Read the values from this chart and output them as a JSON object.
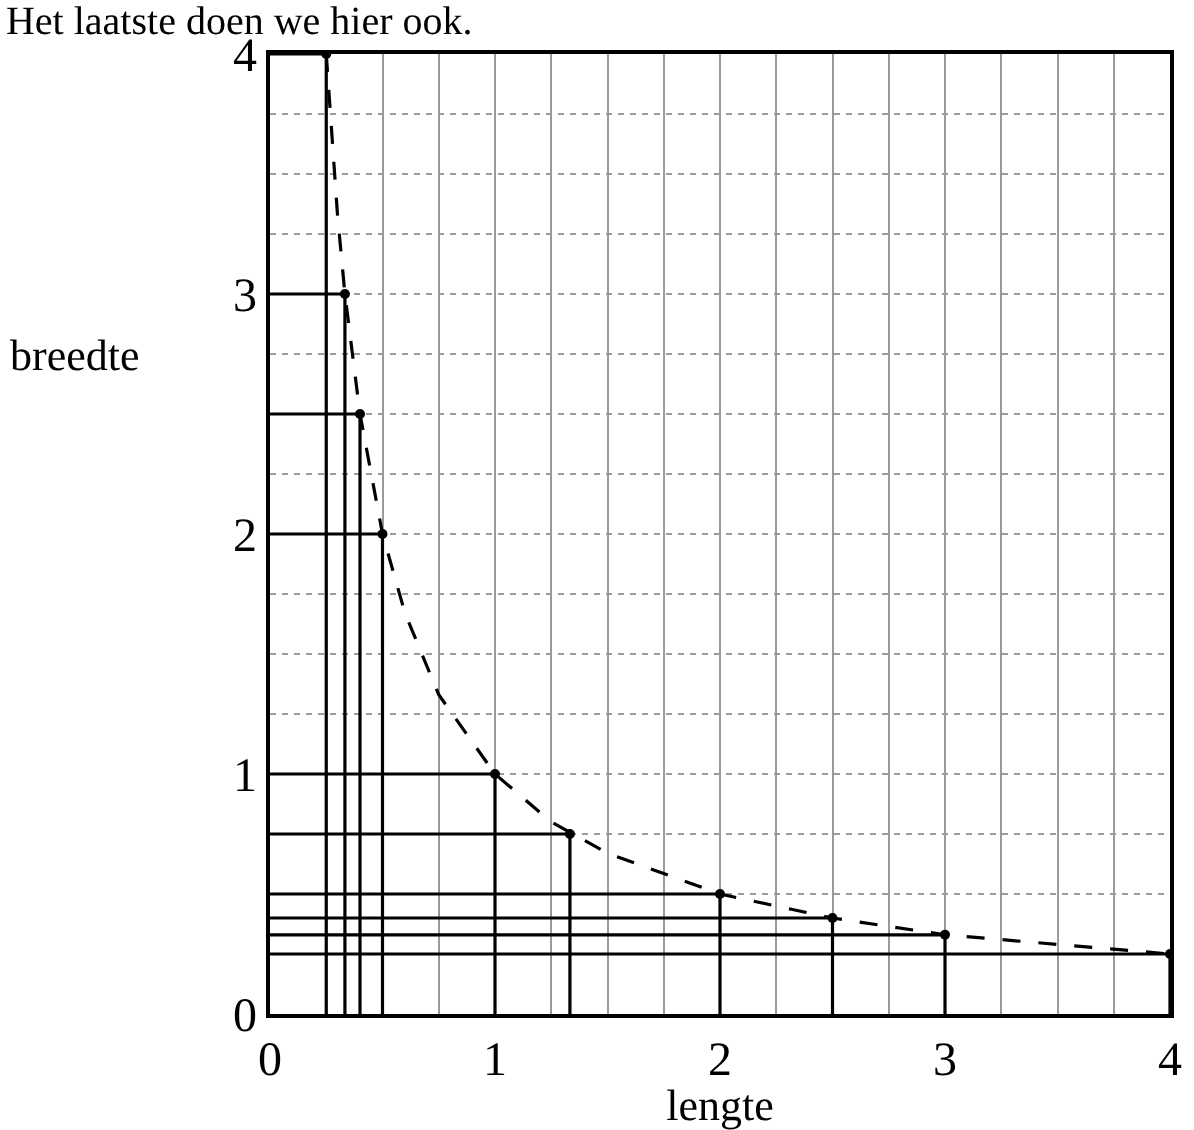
{
  "chart_data": {
    "type": "line",
    "title": "Het laatste doen we hier ook.",
    "xlabel": "lengte",
    "ylabel": "breedte",
    "xlim": [
      0,
      4
    ],
    "ylim": [
      0,
      4
    ],
    "xticks": [
      0,
      {
        "value": 0.25,
        "label": null
      },
      {
        "value": 0.5,
        "label": null
      },
      {
        "value": 0.75,
        "label": null
      },
      1,
      {
        "value": 1.25,
        "label": null
      },
      {
        "value": 1.5,
        "label": null
      },
      {
        "value": 1.75,
        "label": null
      },
      2,
      {
        "value": 2.25,
        "label": null
      },
      {
        "value": 2.5,
        "label": null
      },
      {
        "value": 2.75,
        "label": null
      },
      3,
      {
        "value": 3.25,
        "label": null
      },
      {
        "value": 3.5,
        "label": null
      },
      {
        "value": 3.75,
        "label": null
      },
      4
    ],
    "yticks": [
      0,
      {
        "value": 0.25,
        "label": null
      },
      {
        "value": 0.5,
        "label": null
      },
      {
        "value": 0.75,
        "label": null
      },
      1,
      {
        "value": 1.25,
        "label": null
      },
      {
        "value": 1.5,
        "label": null
      },
      {
        "value": 1.75,
        "label": null
      },
      2,
      {
        "value": 2.25,
        "label": null
      },
      {
        "value": 2.5,
        "label": null
      },
      {
        "value": 2.75,
        "label": null
      },
      3,
      {
        "value": 3.25,
        "label": null
      },
      {
        "value": 3.5,
        "label": null
      },
      {
        "value": 3.75,
        "label": null
      },
      4
    ],
    "grid": true,
    "series": [
      {
        "type": "line",
        "line_style": "dashed",
        "color": "#000000",
        "x": [
          0.25,
          0.3,
          0.333,
          0.4,
          0.5,
          0.6,
          0.75,
          1,
          1.25,
          1.5,
          2,
          2.5,
          3,
          3.5,
          4
        ],
        "values": [
          4,
          3.33,
          3,
          2.5,
          2,
          1.67,
          1.33,
          1,
          0.8,
          0.67,
          0.5,
          0.4,
          0.33,
          0.29,
          0.25
        ]
      },
      {
        "type": "line",
        "line_style": "solid",
        "color": "#000000",
        "x": [
          0,
          0.25,
          0.25
        ],
        "values": [
          4,
          4,
          0
        ]
      },
      {
        "type": "line",
        "line_style": "solid",
        "color": "#000000",
        "x": [
          0,
          0.333,
          0.333
        ],
        "values": [
          3,
          3,
          0
        ]
      },
      {
        "type": "line",
        "line_style": "solid",
        "color": "#000000",
        "x": [
          0,
          0.4,
          0.4
        ],
        "values": [
          2.5,
          2.5,
          0
        ]
      },
      {
        "type": "line",
        "line_style": "solid",
        "color": "#000000",
        "x": [
          0,
          0.5,
          0.5
        ],
        "values": [
          2,
          2,
          0
        ]
      },
      {
        "type": "line",
        "line_style": "solid",
        "color": "#000000",
        "x": [
          0,
          1,
          1
        ],
        "values": [
          1,
          1,
          0
        ]
      },
      {
        "type": "line",
        "line_style": "solid",
        "color": "#000000",
        "x": [
          0,
          1.333,
          1.333
        ],
        "values": [
          0.75,
          0.75,
          0
        ]
      },
      {
        "type": "line",
        "line_style": "solid",
        "color": "#000000",
        "x": [
          0,
          2,
          2
        ],
        "values": [
          0.5,
          0.5,
          0
        ]
      },
      {
        "type": "line",
        "line_style": "solid",
        "color": "#000000",
        "x": [
          0,
          2.5,
          2.5
        ],
        "values": [
          0.4,
          0.4,
          0
        ]
      },
      {
        "type": "line",
        "line_style": "solid",
        "color": "#000000",
        "x": [
          0,
          3,
          3
        ],
        "values": [
          0.33,
          0.33,
          0
        ]
      },
      {
        "type": "line",
        "line_style": "solid",
        "color": "#000000",
        "x": [
          0,
          4,
          4
        ],
        "values": [
          0.25,
          0.25,
          0
        ]
      },
      {
        "type": "scatter",
        "marker": "circle",
        "color": "#000000",
        "x": [
          0.25,
          0.333,
          0.4,
          0.5,
          1,
          1.333,
          2,
          2.5,
          3,
          4
        ],
        "values": [
          4,
          3,
          2.5,
          2,
          1,
          0.75,
          0.5,
          0.4,
          0.33,
          0.25
        ]
      }
    ]
  }
}
